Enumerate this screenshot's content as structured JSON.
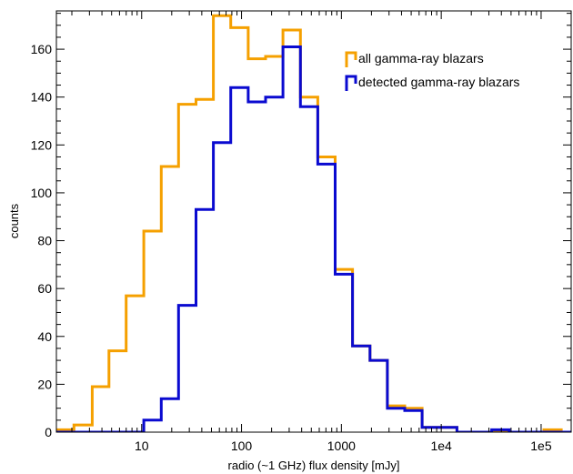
{
  "chart_data": {
    "type": "histogram",
    "title": "",
    "xlabel": "radio (~1 GHz) flux density [mJy]",
    "ylabel": "counts",
    "x_scale": "log",
    "xlim": [
      1.4,
      200000
    ],
    "ylim": [
      0,
      176
    ],
    "x_ticks": [
      10,
      100,
      1000,
      10000,
      100000
    ],
    "x_tick_labels": [
      "10",
      "100",
      "1000",
      "1e4",
      "1e5"
    ],
    "y_ticks": [
      0,
      20,
      40,
      60,
      80,
      100,
      120,
      140,
      160
    ],
    "y_tick_labels": [
      "0",
      "20",
      "40",
      "60",
      "80",
      "100",
      "120",
      "140",
      "160"
    ],
    "bin_edges": [
      1.4,
      2.1,
      3.2,
      4.7,
      7.0,
      10.5,
      15.7,
      23.4,
      35.0,
      52.3,
      78.0,
      116.6,
      174.1,
      260,
      388.5,
      580,
      866.5,
      1294,
      1932.5,
      2886,
      4310,
      6436,
      9612,
      14355,
      21438,
      32016,
      47813,
      71404,
      106634,
      159245,
      237815
    ],
    "legend_position": "top-right",
    "series": [
      {
        "name": "all gamma-ray blazars",
        "color": "#f5a000",
        "counts": [
          1,
          3,
          19,
          34,
          57,
          84,
          111,
          137,
          139,
          174,
          169,
          156,
          157,
          168,
          140,
          115,
          68,
          36,
          30,
          11,
          10,
          2,
          2,
          0,
          0,
          0,
          0,
          0,
          1,
          0
        ]
      },
      {
        "name": "detected gamma-ray blazars",
        "color": "#0a0ad0",
        "counts": [
          0,
          0,
          0,
          0,
          0,
          5,
          14,
          53,
          93,
          121,
          144,
          138,
          140,
          161,
          136,
          112,
          66,
          36,
          30,
          10,
          9,
          2,
          2,
          0,
          0,
          1,
          0,
          0,
          0,
          0
        ]
      }
    ]
  }
}
